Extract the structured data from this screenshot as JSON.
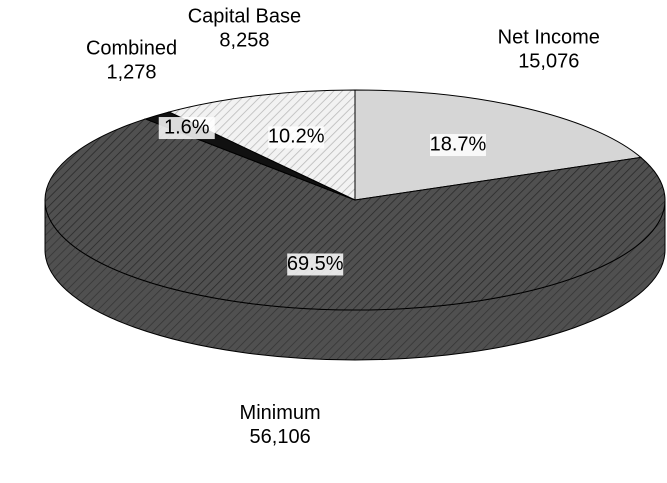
{
  "chart_data": {
    "type": "pie3d",
    "categories": [
      "Net Income",
      "Minimum",
      "Combined",
      "Capital Base"
    ],
    "values": [
      15076,
      56106,
      1278,
      8258
    ],
    "value_labels": [
      "15,076",
      "56,106",
      "1,278",
      "8,258"
    ],
    "percentages": [
      18.7,
      69.5,
      1.6,
      10.2
    ],
    "percentage_labels": [
      "18.7%",
      "69.5%",
      "1.6%",
      "10.2%"
    ],
    "colors": [
      "#d6d6d6",
      "#505050",
      "#111111",
      "#f2f2f2"
    ]
  }
}
